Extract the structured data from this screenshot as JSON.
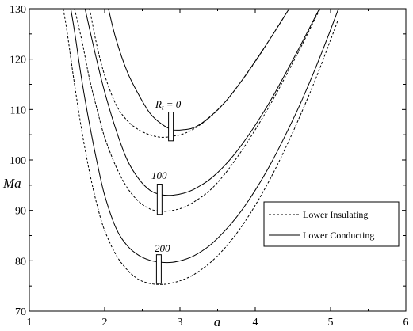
{
  "chart_data": {
    "type": "line",
    "xlabel": "a",
    "ylabel": "Ma",
    "xlim": [
      1,
      6
    ],
    "ylim": [
      70,
      130
    ],
    "xticks": [
      1,
      2,
      3,
      4,
      5,
      6
    ],
    "yticks": [
      70,
      80,
      90,
      100,
      110,
      120,
      130
    ],
    "grid": false,
    "legend_position": "right",
    "legend": [
      {
        "label": "Lower Insulating",
        "style": "dashed"
      },
      {
        "label": "Lower Conducting",
        "style": "solid"
      }
    ],
    "annotations": [
      {
        "text": "R",
        "sub": "t",
        "suffix": " = 0",
        "x": 2.75,
        "y": 111
      },
      {
        "text": "100",
        "sub": "",
        "suffix": "",
        "x": 2.72,
        "y": 96
      },
      {
        "text": "200",
        "sub": "",
        "suffix": "",
        "x": 2.74,
        "y": 82
      }
    ],
    "markers": [
      {
        "x": 2.88,
        "y_low": 103.8,
        "y_high": 109.5
      },
      {
        "x": 2.73,
        "y_low": 89.2,
        "y_high": 95.2
      },
      {
        "x": 2.72,
        "y_low": 75.5,
        "y_high": 81.2
      }
    ],
    "series": [
      {
        "style": "dashed",
        "group": "0",
        "x": [
          1.8,
          1.9,
          2.0,
          2.15,
          2.3,
          2.45,
          2.6,
          2.75,
          2.9,
          3.05,
          3.2,
          3.4,
          3.6,
          3.8,
          4.0,
          4.2,
          4.4,
          4.6
        ],
        "y": [
          130,
          122.5,
          116.8,
          111.0,
          107.8,
          106.0,
          105.0,
          104.5,
          104.7,
          105.2,
          106.3,
          108.5,
          111.5,
          115.3,
          119.5,
          124.1,
          128.8,
          133.6
        ]
      },
      {
        "style": "solid",
        "group": "0",
        "x": [
          2.05,
          2.15,
          2.3,
          2.45,
          2.6,
          2.75,
          2.9,
          3.05,
          3.2,
          3.4,
          3.6,
          3.8,
          4.0,
          4.2,
          4.4,
          4.6
        ],
        "y": [
          130,
          124.0,
          117.5,
          113.0,
          109.3,
          107.2,
          106.0,
          106.0,
          106.5,
          108.6,
          111.5,
          115.3,
          119.6,
          124.1,
          128.8,
          133.6
        ]
      },
      {
        "style": "dashed",
        "group": "100",
        "x": [
          1.6,
          1.7,
          1.8,
          1.9,
          2.0,
          2.15,
          2.3,
          2.45,
          2.6,
          2.75,
          2.9,
          3.05,
          3.2,
          3.4,
          3.6,
          3.8,
          4.0,
          4.2,
          4.4,
          4.6,
          4.8,
          4.9
        ],
        "y": [
          130,
          123.5,
          116.0,
          110.0,
          104.5,
          98.7,
          94.5,
          91.8,
          90.3,
          89.8,
          90.0,
          90.6,
          91.8,
          94.0,
          97.3,
          101.4,
          106.0,
          111.0,
          116.5,
          122.2,
          128.2,
          131.0
        ]
      },
      {
        "style": "solid",
        "group": "100",
        "x": [
          1.74,
          1.8,
          1.9,
          2.0,
          2.15,
          2.3,
          2.45,
          2.6,
          2.75,
          2.9,
          3.05,
          3.2,
          3.4,
          3.6,
          3.8,
          4.0,
          4.2,
          4.4,
          4.6,
          4.8,
          4.9
        ],
        "y": [
          130,
          126.0,
          119.5,
          113.5,
          106.0,
          100.0,
          96.3,
          94.0,
          93.1,
          93.0,
          93.4,
          94.3,
          96.2,
          99.0,
          102.6,
          106.9,
          111.7,
          117.1,
          122.7,
          128.5,
          131.4
        ]
      },
      {
        "style": "dashed",
        "group": "200",
        "x": [
          1.45,
          1.5,
          1.6,
          1.7,
          1.8,
          1.9,
          2.0,
          2.15,
          2.3,
          2.45,
          2.6,
          2.75,
          2.9,
          3.05,
          3.2,
          3.4,
          3.6,
          3.8,
          4.0,
          4.2,
          4.4,
          4.6,
          4.8,
          5.0,
          5.1
        ],
        "y": [
          130,
          125.5,
          115.0,
          105.5,
          97.5,
          91.0,
          86.0,
          81.2,
          78.2,
          76.3,
          75.5,
          75.3,
          75.6,
          76.3,
          77.4,
          79.6,
          82.6,
          86.4,
          91.0,
          96.3,
          102.3,
          108.9,
          116.0,
          123.8,
          127.8
        ]
      },
      {
        "style": "solid",
        "group": "200",
        "x": [
          1.55,
          1.6,
          1.7,
          1.8,
          1.9,
          2.0,
          2.15,
          2.3,
          2.45,
          2.6,
          2.75,
          2.9,
          3.05,
          3.2,
          3.4,
          3.6,
          3.8,
          4.0,
          4.2,
          4.4,
          4.6,
          4.8,
          5.0,
          5.15
        ],
        "y": [
          130,
          125.5,
          115.5,
          107.0,
          99.5,
          93.0,
          86.5,
          83.0,
          81.1,
          80.1,
          79.7,
          79.7,
          80.2,
          81.1,
          83.1,
          86.0,
          89.6,
          94.0,
          99.1,
          104.9,
          111.2,
          118.2,
          125.8,
          131.8
        ]
      }
    ]
  }
}
